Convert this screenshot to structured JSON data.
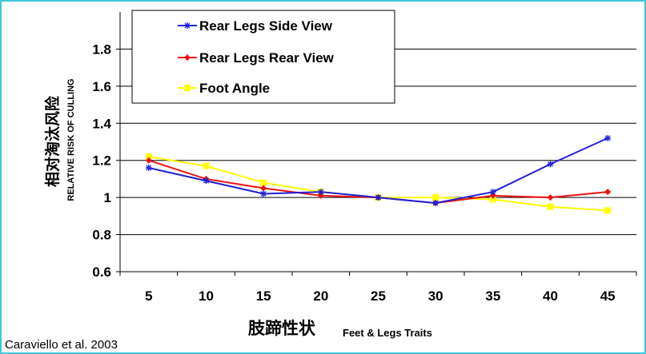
{
  "chart_data": {
    "type": "line",
    "x": [
      5,
      10,
      15,
      20,
      25,
      30,
      35,
      40,
      45
    ],
    "categories": [
      "5",
      "10",
      "15",
      "20",
      "25",
      "30",
      "35",
      "40",
      "45"
    ],
    "ylim": [
      0.6,
      2.0
    ],
    "yticks": [
      "0.6",
      "0.8",
      "1",
      "1.2",
      "1.4",
      "1.6",
      "1.8"
    ],
    "ytick_values": [
      0.6,
      0.8,
      1.0,
      1.2,
      1.4,
      1.6,
      1.8
    ],
    "ylabel_cn": "相对淘汰风险",
    "ylabel_en": "RELATIVE RISK OF CULLING",
    "xlabel_cn": "肢蹄性状",
    "xlabel_en": "Feet & Legs Traits",
    "grid": "horizontal",
    "legend_position": "top-left",
    "series": [
      {
        "name": "Rear Legs Side View",
        "color": "#1f1fd6",
        "marker": "star",
        "values": [
          1.16,
          1.09,
          1.02,
          1.03,
          1.0,
          0.97,
          1.03,
          1.18,
          1.32
        ]
      },
      {
        "name": "Rear Legs Rear View",
        "color": "#ee1111",
        "marker": "diamond",
        "values": [
          1.2,
          1.1,
          1.05,
          1.01,
          1.0,
          0.97,
          1.01,
          1.0,
          1.03
        ]
      },
      {
        "name": "Foot Angle",
        "color": "#ffff00",
        "marker": "square",
        "values": [
          1.22,
          1.17,
          1.08,
          1.03,
          1.0,
          1.0,
          0.99,
          0.95,
          0.93
        ]
      }
    ]
  },
  "citation": "Caraviello et al. 2003"
}
